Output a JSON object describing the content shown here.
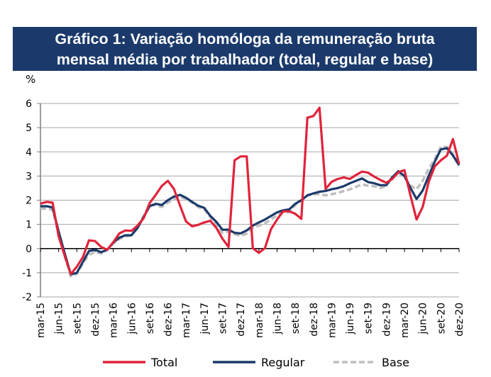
{
  "chart_data": {
    "type": "line",
    "title_line1": "Gráfico 1: Variação homóloga da remuneração bruta",
    "title_line2": "mensal média por trabalhador (total, regular e base)",
    "ylabel": "%",
    "ylim": [
      -2,
      6
    ],
    "yticks": [
      -2,
      -1,
      0,
      1,
      2,
      3,
      4,
      5,
      6
    ],
    "grid": true,
    "legend_position": "bottom",
    "x_start": "mar-15",
    "x_end": "dez-20",
    "frequency": "monthly",
    "xtick_labels": [
      "mar-15",
      "jun-15",
      "set-15",
      "dez-15",
      "mar-16",
      "jun-16",
      "set-16",
      "dez-16",
      "mar-17",
      "jun-17",
      "set-17",
      "dez-17",
      "mar-18",
      "jun-18",
      "set-18",
      "dez-18",
      "mar-19",
      "jun-19",
      "set-19",
      "dez-19",
      "mar-20",
      "jun-20",
      "set-20",
      "dez-20"
    ],
    "series": [
      {
        "name": "Total",
        "color": "#E0233A",
        "dash": false,
        "values": [
          1.86,
          1.93,
          1.9,
          0.5,
          -0.3,
          -1.06,
          -0.75,
          -0.35,
          0.34,
          0.31,
          0.07,
          -0.05,
          0.26,
          0.63,
          0.75,
          0.73,
          0.95,
          1.25,
          1.88,
          2.22,
          2.59,
          2.8,
          2.47,
          1.78,
          1.12,
          0.92,
          0.98,
          1.08,
          1.15,
          0.85,
          0.41,
          0.07,
          3.65,
          3.81,
          3.81,
          0.02,
          -0.18,
          0.02,
          0.8,
          1.2,
          1.54,
          1.54,
          1.44,
          1.23,
          5.41,
          5.48,
          5.82,
          2.47,
          2.76,
          2.88,
          2.94,
          2.88,
          3.04,
          3.18,
          3.14,
          2.98,
          2.84,
          2.72,
          2.88,
          3.16,
          3.24,
          2.18,
          1.2,
          1.72,
          2.76,
          3.4,
          3.65,
          3.84,
          4.53,
          3.5
        ]
      },
      {
        "name": "Regular",
        "color": "#1B3A6B",
        "dash": false,
        "values": [
          1.75,
          1.75,
          1.7,
          0.7,
          -0.2,
          -1.07,
          -1.0,
          -0.55,
          -0.1,
          -0.05,
          -0.15,
          -0.05,
          0.25,
          0.45,
          0.55,
          0.55,
          0.85,
          1.3,
          1.75,
          1.85,
          1.8,
          2.0,
          2.15,
          2.22,
          2.1,
          1.93,
          1.77,
          1.68,
          1.35,
          1.1,
          0.78,
          0.78,
          0.65,
          0.63,
          0.75,
          0.95,
          1.08,
          1.2,
          1.35,
          1.5,
          1.58,
          1.62,
          1.85,
          2.0,
          2.2,
          2.28,
          2.35,
          2.38,
          2.45,
          2.5,
          2.58,
          2.7,
          2.8,
          2.9,
          2.75,
          2.7,
          2.62,
          2.62,
          2.95,
          3.2,
          3.0,
          2.5,
          2.05,
          2.4,
          3.0,
          3.6,
          4.1,
          4.15,
          3.85,
          3.45
        ]
      },
      {
        "name": "Base",
        "color": "#BFBFBF",
        "dash": true,
        "values": [
          1.65,
          1.65,
          1.6,
          0.6,
          -0.3,
          -1.15,
          -1.05,
          -0.6,
          -0.25,
          -0.15,
          -0.2,
          -0.05,
          0.2,
          0.4,
          0.5,
          0.55,
          0.9,
          1.35,
          1.8,
          1.8,
          1.72,
          1.9,
          2.05,
          2.15,
          2.05,
          1.9,
          1.72,
          1.62,
          1.3,
          1.0,
          0.65,
          0.7,
          0.6,
          0.52,
          0.62,
          0.85,
          0.95,
          1.05,
          1.2,
          1.38,
          1.5,
          1.5,
          1.8,
          1.98,
          2.2,
          2.25,
          2.25,
          2.2,
          2.25,
          2.3,
          2.38,
          2.45,
          2.55,
          2.65,
          2.6,
          2.58,
          2.5,
          2.6,
          2.95,
          3.15,
          2.95,
          2.6,
          2.45,
          2.8,
          3.3,
          3.7,
          4.2,
          4.2,
          3.9,
          3.4
        ]
      }
    ]
  }
}
